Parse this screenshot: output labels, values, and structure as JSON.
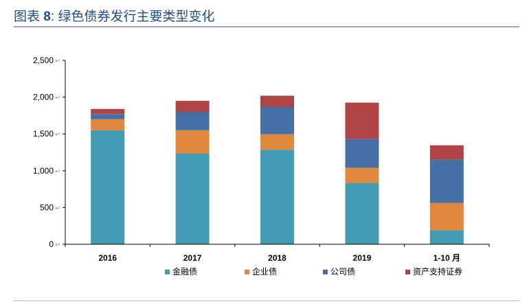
{
  "header": {
    "prefix": "图表",
    "number": "8",
    "colon": ":",
    "caption": "绿色债券发行主要类型变化"
  },
  "chart_data": {
    "type": "bar",
    "stacked": true,
    "title": "图表 8: 绿色债券发行主要类型变化",
    "categories": [
      "2016",
      "2017",
      "2018",
      "2019",
      "1-10 月"
    ],
    "y_ticks": [
      "0",
      "500",
      "1,000",
      "1,500",
      "2,000",
      "2,500"
    ],
    "ylim": [
      0,
      2500
    ],
    "grid": false,
    "legend_position": "bottom",
    "series": [
      {
        "name": "金融债",
        "color": "#439bb3",
        "values": [
          1550,
          1235,
          1285,
          830,
          190
        ]
      },
      {
        "name": "企业债",
        "color": "#e0883e",
        "values": [
          150,
          315,
          210,
          210,
          370
        ]
      },
      {
        "name": "公司债",
        "color": "#4470a6",
        "values": [
          70,
          250,
          375,
          390,
          590
        ]
      },
      {
        "name": "资产支持证券",
        "color": "#b04444",
        "values": [
          70,
          150,
          150,
          495,
          195
        ]
      }
    ]
  }
}
